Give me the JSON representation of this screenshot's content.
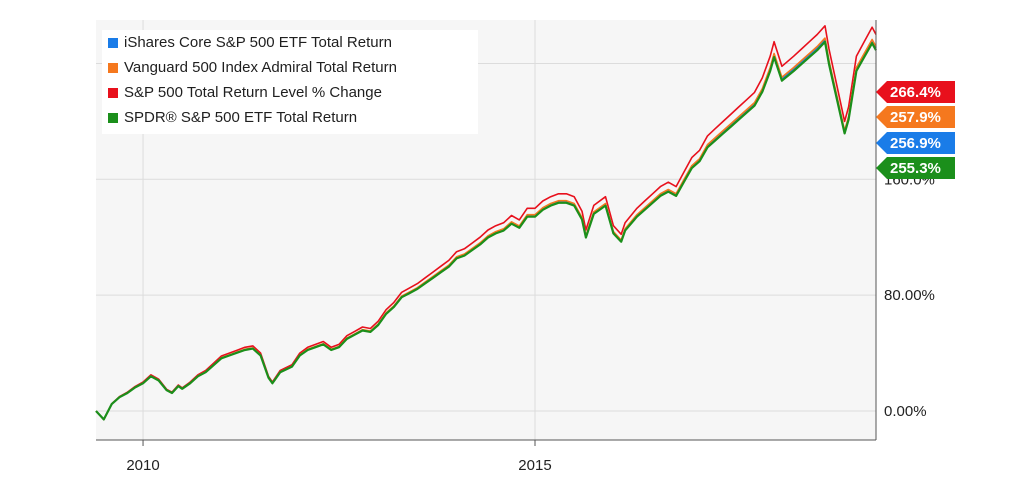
{
  "chart_data": {
    "type": "line",
    "legend_position": "top-left",
    "grid": true,
    "x_ticks": [
      "2010",
      "2015"
    ],
    "y_ticks": [
      "0.00%",
      "80.00%",
      "160.0%"
    ],
    "ylim": [
      -20,
      270
    ],
    "xlim": [
      2009.4,
      2019.35
    ],
    "series": [
      {
        "name": "iShares Core S&P 500 ETF Total Return",
        "color": "#1a7ce8",
        "end_label": "256.9%",
        "end_value": 256.9
      },
      {
        "name": "Vanguard 500 Index Admiral Total Return",
        "color": "#f5781e",
        "end_label": "257.9%",
        "end_value": 257.9
      },
      {
        "name": "S&P 500 Total Return Level % Change",
        "color": "#e8101c",
        "end_label": "266.4%",
        "end_value": 266.4
      },
      {
        "name": "SPDR® S&P 500 ETF Total Return",
        "color": "#1b8f1b",
        "end_label": "255.3%",
        "end_value": 255.3
      }
    ],
    "x": [
      2009.4,
      2009.5,
      2009.6,
      2009.7,
      2009.8,
      2009.9,
      2010.0,
      2010.1,
      2010.2,
      2010.3,
      2010.37,
      2010.45,
      2010.5,
      2010.6,
      2010.7,
      2010.8,
      2010.9,
      2011.0,
      2011.1,
      2011.2,
      2011.3,
      2011.4,
      2011.5,
      2011.6,
      2011.65,
      2011.75,
      2011.9,
      2012.0,
      2012.1,
      2012.2,
      2012.3,
      2012.4,
      2012.5,
      2012.6,
      2012.7,
      2012.8,
      2012.9,
      2013.0,
      2013.1,
      2013.2,
      2013.3,
      2013.4,
      2013.5,
      2013.6,
      2013.7,
      2013.8,
      2013.9,
      2014.0,
      2014.1,
      2014.2,
      2014.3,
      2014.4,
      2014.5,
      2014.6,
      2014.7,
      2014.8,
      2014.9,
      2015.0,
      2015.1,
      2015.2,
      2015.3,
      2015.4,
      2015.5,
      2015.6,
      2015.65,
      2015.75,
      2015.9,
      2016.0,
      2016.1,
      2016.15,
      2016.3,
      2016.4,
      2016.5,
      2016.6,
      2016.7,
      2016.8,
      2016.9,
      2017.0,
      2017.1,
      2017.2,
      2017.3,
      2017.4,
      2017.5,
      2017.6,
      2017.7,
      2017.8,
      2017.9,
      2018.0,
      2018.05,
      2018.15,
      2018.3,
      2018.4,
      2018.5,
      2018.6,
      2018.7,
      2018.75,
      2018.85,
      2018.95,
      2019.0,
      2019.1,
      2019.2,
      2019.3,
      2019.35
    ],
    "values": [
      0,
      -6,
      5,
      10,
      13,
      17,
      20,
      25,
      22,
      15,
      13,
      18,
      16,
      20,
      25,
      28,
      33,
      38,
      40,
      42,
      44,
      45,
      40,
      24,
      20,
      28,
      32,
      40,
      44,
      46,
      48,
      44,
      46,
      52,
      55,
      58,
      57,
      62,
      70,
      75,
      82,
      85,
      88,
      92,
      96,
      100,
      104,
      110,
      112,
      116,
      120,
      125,
      128,
      130,
      135,
      132,
      140,
      140,
      145,
      148,
      150,
      150,
      148,
      138,
      125,
      142,
      148,
      128,
      122,
      130,
      140,
      145,
      150,
      155,
      158,
      155,
      165,
      175,
      180,
      190,
      195,
      200,
      205,
      210,
      215,
      220,
      230,
      245,
      255,
      238,
      245,
      250,
      255,
      260,
      266,
      250,
      225,
      200,
      210,
      245,
      255,
      265,
      260
    ]
  }
}
